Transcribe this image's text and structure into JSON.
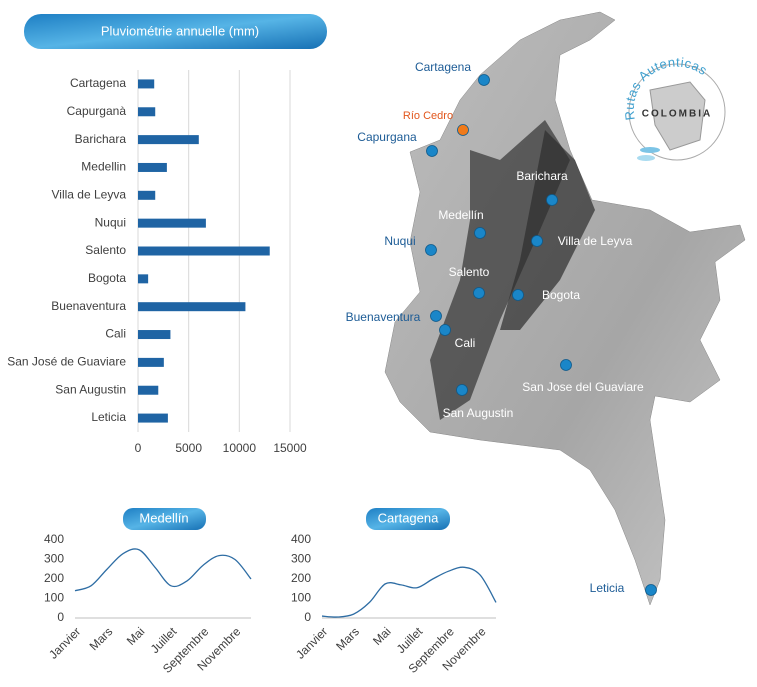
{
  "chart_data": [
    {
      "type": "bar",
      "orientation": "horizontal",
      "title": "Pluviométrie annuelle (mm)",
      "categories": [
        "Cartagena",
        "Capurganà",
        "Barichara",
        "Medellin",
        "Villa de Leyva",
        "Nuqui",
        "Salento",
        "Bogota",
        "Buenaventura",
        "Cali",
        "San José de Guaviare",
        "San Augustin",
        "Leticia"
      ],
      "values": [
        1600,
        1700,
        6000,
        2850,
        1700,
        6700,
        13000,
        1000,
        10600,
        3200,
        2550,
        2000,
        2950
      ],
      "color": "#1f64a4",
      "xlim": [
        0,
        15000
      ],
      "xticks": [
        0,
        5000,
        10000,
        15000
      ],
      "grid": true
    },
    {
      "type": "line",
      "title": "Medellín",
      "categories": [
        "Janvier",
        null,
        "Mars",
        null,
        "Mai",
        null,
        "Juillet",
        null,
        "Septembre",
        null,
        "Novembre",
        null
      ],
      "values": [
        140,
        165,
        250,
        330,
        350,
        260,
        165,
        190,
        270,
        320,
        300,
        200
      ],
      "color": "#2e6da4",
      "ylim": [
        0,
        400
      ],
      "yticks": [
        0,
        100,
        200,
        300,
        400
      ]
    },
    {
      "type": "line",
      "title": "Cartagena",
      "categories": [
        "Janvier",
        null,
        "Mars",
        null,
        "Mai",
        null,
        "Juillet",
        null,
        "Septembre",
        null,
        "Novembre",
        null
      ],
      "values": [
        10,
        5,
        20,
        80,
        175,
        170,
        155,
        200,
        240,
        260,
        220,
        80
      ],
      "color": "#2e6da4",
      "ylim": [
        0,
        400
      ],
      "yticks": [
        0,
        100,
        200,
        300,
        400
      ]
    }
  ],
  "map": {
    "logo": {
      "arc_text": "Rutas Autenticas",
      "center_text": "COLOMBIA"
    },
    "labels": [
      "Cartagena",
      "Río Cedro",
      "Capurgana",
      "Barichara",
      "Medellín",
      "Nuqui",
      "Villa de Leyva",
      "Salento",
      "Bogota",
      "Buenaventura",
      "Cali",
      "San Jose del Guaviare",
      "San Augustin",
      "Leticia"
    ]
  }
}
